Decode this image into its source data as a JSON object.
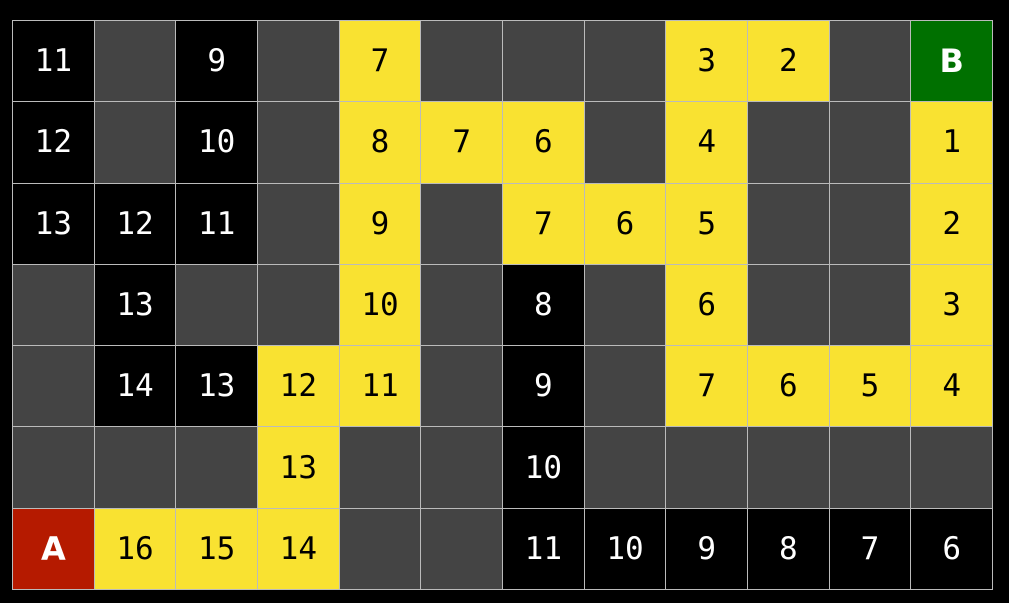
{
  "colors": {
    "wall": "#444444",
    "visited": "#000000",
    "path": "#f9e231",
    "start": "#b51a00",
    "goal": "#007000"
  },
  "legend_codes": {
    "w": "wall",
    "v": "visited",
    "p": "path",
    "A": "start",
    "B": "goal"
  },
  "grid": [
    [
      [
        "v",
        "11"
      ],
      [
        "w",
        ""
      ],
      [
        "v",
        "9"
      ],
      [
        "w",
        ""
      ],
      [
        "p",
        "7"
      ],
      [
        "w",
        ""
      ],
      [
        "w",
        ""
      ],
      [
        "w",
        ""
      ],
      [
        "p",
        "3"
      ],
      [
        "p",
        "2"
      ],
      [
        "w",
        ""
      ],
      [
        "B",
        "B"
      ]
    ],
    [
      [
        "v",
        "12"
      ],
      [
        "w",
        ""
      ],
      [
        "v",
        "10"
      ],
      [
        "w",
        ""
      ],
      [
        "p",
        "8"
      ],
      [
        "p",
        "7"
      ],
      [
        "p",
        "6"
      ],
      [
        "w",
        ""
      ],
      [
        "p",
        "4"
      ],
      [
        "w",
        ""
      ],
      [
        "w",
        ""
      ],
      [
        "p",
        "1"
      ]
    ],
    [
      [
        "v",
        "13"
      ],
      [
        "v",
        "12"
      ],
      [
        "v",
        "11"
      ],
      [
        "w",
        ""
      ],
      [
        "p",
        "9"
      ],
      [
        "w",
        ""
      ],
      [
        "p",
        "7"
      ],
      [
        "p",
        "6"
      ],
      [
        "p",
        "5"
      ],
      [
        "w",
        ""
      ],
      [
        "w",
        ""
      ],
      [
        "p",
        "2"
      ]
    ],
    [
      [
        "w",
        ""
      ],
      [
        "v",
        "13"
      ],
      [
        "w",
        ""
      ],
      [
        "w",
        ""
      ],
      [
        "p",
        "10"
      ],
      [
        "w",
        ""
      ],
      [
        "v",
        "8"
      ],
      [
        "w",
        ""
      ],
      [
        "p",
        "6"
      ],
      [
        "w",
        ""
      ],
      [
        "w",
        ""
      ],
      [
        "p",
        "3"
      ]
    ],
    [
      [
        "w",
        ""
      ],
      [
        "v",
        "14"
      ],
      [
        "v",
        "13"
      ],
      [
        "p",
        "12"
      ],
      [
        "p",
        "11"
      ],
      [
        "w",
        ""
      ],
      [
        "v",
        "9"
      ],
      [
        "w",
        ""
      ],
      [
        "p",
        "7"
      ],
      [
        "p",
        "6"
      ],
      [
        "p",
        "5"
      ],
      [
        "p",
        "4"
      ]
    ],
    [
      [
        "w",
        ""
      ],
      [
        "w",
        ""
      ],
      [
        "w",
        ""
      ],
      [
        "p",
        "13"
      ],
      [
        "w",
        ""
      ],
      [
        "w",
        ""
      ],
      [
        "v",
        "10"
      ],
      [
        "w",
        ""
      ],
      [
        "w",
        ""
      ],
      [
        "w",
        ""
      ],
      [
        "w",
        ""
      ],
      [
        "w",
        ""
      ]
    ],
    [
      [
        "A",
        "A"
      ],
      [
        "p",
        "16"
      ],
      [
        "p",
        "15"
      ],
      [
        "p",
        "14"
      ],
      [
        "w",
        ""
      ],
      [
        "w",
        ""
      ],
      [
        "v",
        "11"
      ],
      [
        "v",
        "10"
      ],
      [
        "v",
        "9"
      ],
      [
        "v",
        "8"
      ],
      [
        "v",
        "7"
      ],
      [
        "v",
        "6"
      ]
    ]
  ]
}
